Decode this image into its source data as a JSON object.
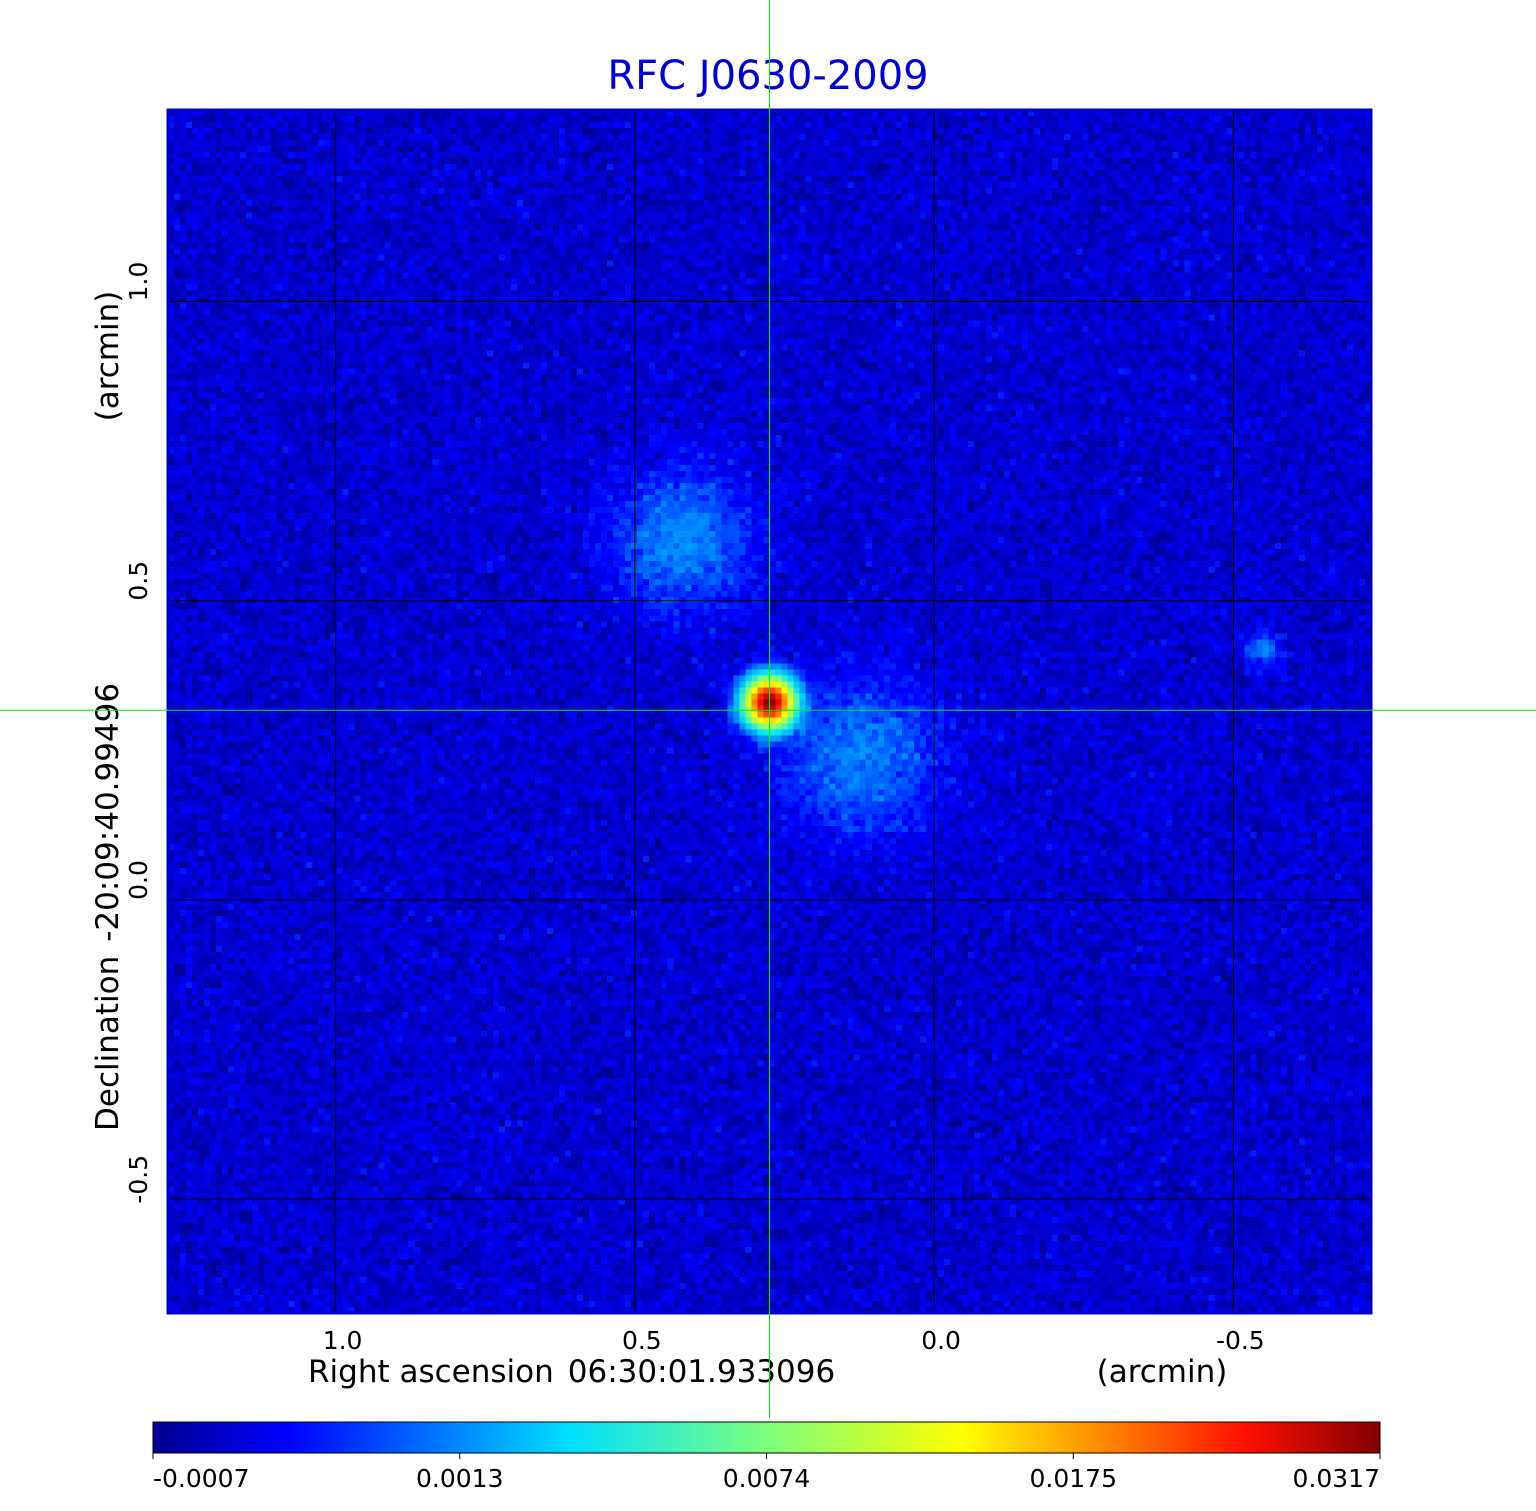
{
  "chart_data": {
    "type": "heatmap",
    "title": "RFC J0630-2009",
    "xlabel": {
      "name": "Right ascension",
      "center": "06:30:01.933096",
      "unit": "(arcmin)"
    },
    "ylabel": {
      "name": "Declination",
      "center": "-20:09:40.99496",
      "unit": "(arcmin)"
    },
    "xlim": [
      1.28,
      -0.73
    ],
    "ylim": [
      -0.69,
      1.32
    ],
    "x_ticks": [
      1.0,
      0.5,
      0.0,
      -0.5
    ],
    "x_tick_labels": [
      "1.0",
      "0.5",
      "0.0",
      "-0.5"
    ],
    "y_ticks": [
      1.0,
      0.5,
      0.0,
      -0.5
    ],
    "y_tick_labels": [
      "1.0",
      "0.5",
      "0.0",
      "-0.5"
    ],
    "grid": true,
    "colormap": "jet",
    "colorbar": {
      "orientation": "horizontal",
      "position": "bottom",
      "tick_labels": [
        "-0.0007",
        "0.0013",
        "0.0074",
        "0.0175",
        "0.0317"
      ],
      "min": -0.0007,
      "max": 0.0317
    },
    "crosshair": {
      "x": 0.275,
      "y": 0.317,
      "color": "#00ee00"
    },
    "sources": [
      {
        "x": 0.275,
        "y": 0.33,
        "peak": 0.0317,
        "sigma": 0.025
      },
      {
        "x": 0.42,
        "y": 0.6,
        "peak": 0.0016,
        "sigma": 0.08
      },
      {
        "x": 0.12,
        "y": 0.24,
        "peak": 0.0015,
        "sigma": 0.09
      },
      {
        "x": -0.55,
        "y": 0.42,
        "peak": 0.0015,
        "sigma": 0.02
      }
    ],
    "background_level": -0.0002,
    "noise_level": 0.0005
  },
  "colors": {
    "title": "#0000dd",
    "plot_frame": "#0000cc",
    "grid": "#000000",
    "crosshair": "#00ee00"
  }
}
